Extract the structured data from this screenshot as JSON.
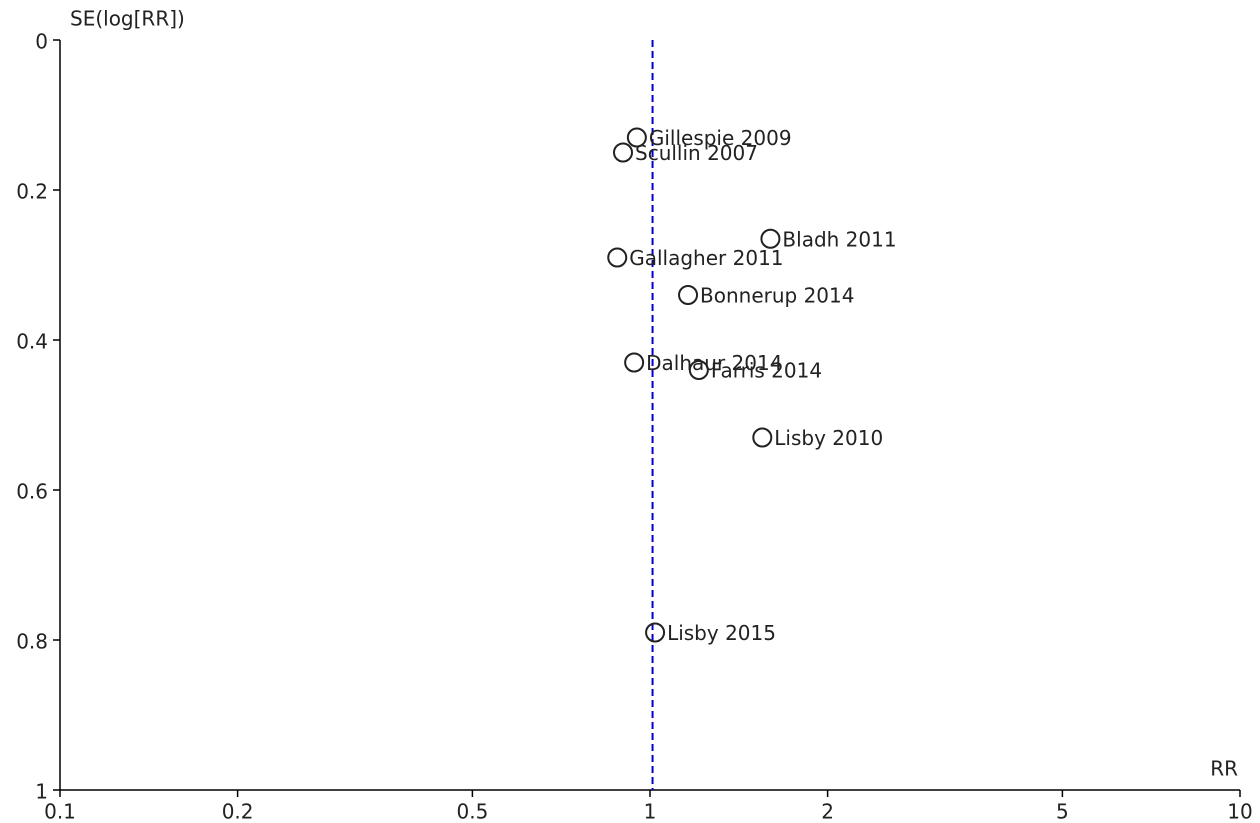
{
  "chart_data": {
    "type": "scatter",
    "x_label": "RR",
    "y_label": "SE(log[RR])",
    "x": [
      0.95,
      0.9,
      1.6,
      0.88,
      1.16,
      0.94,
      1.21,
      1.55,
      1.02
    ],
    "values": [
      0.13,
      0.15,
      0.265,
      0.29,
      0.34,
      0.43,
      0.44,
      0.53,
      0.79
    ],
    "point_labels": [
      "Gillespie 2009",
      "Scullin 2007",
      "Bladh 2011",
      "Gallagher 2011",
      "Bonnerup 2014",
      "Dalhaur 2014",
      "Farris 2014",
      "Lisby 2010",
      "Lisby 2015"
    ],
    "color": "#222222",
    "reference_line": 1.01,
    "reference_color": "#0000cc",
    "x_log": true,
    "y_inverted": true,
    "xlim": [
      0.1,
      10
    ],
    "xticks": [
      0.1,
      0.2,
      0.5,
      1,
      2,
      5,
      10
    ],
    "ylim": [
      0,
      1
    ],
    "yticks": [
      0,
      0.2,
      0.4,
      0.6,
      0.8,
      1
    ]
  }
}
